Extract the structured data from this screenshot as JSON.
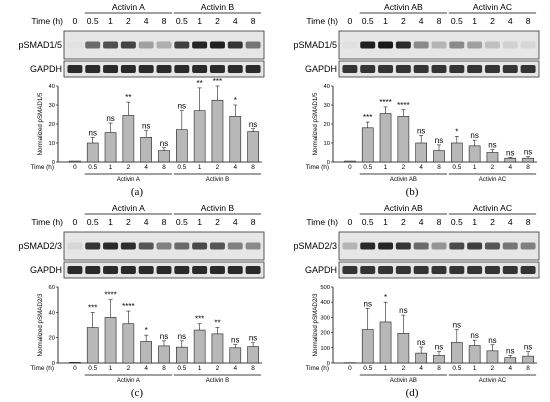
{
  "panels": [
    {
      "id": "a",
      "label": "(a)",
      "time_label": "Time (h)",
      "groups": [
        {
          "name": "Activin A",
          "times": [
            "0.5",
            "1",
            "2",
            "4",
            "8"
          ]
        },
        {
          "name": "Activin B",
          "times": [
            "0.5",
            "1",
            "2",
            "4",
            "8"
          ]
        }
      ],
      "control_time": "0",
      "blots": [
        {
          "label": "pSMAD1/5",
          "intensities": [
            0.04,
            0.6,
            0.72,
            0.78,
            0.35,
            0.28,
            0.8,
            0.92,
            0.95,
            0.85,
            0.55
          ]
        },
        {
          "label": "GAPDH",
          "intensities": [
            0.9,
            0.9,
            0.9,
            0.9,
            0.9,
            0.9,
            0.9,
            0.9,
            0.9,
            0.9,
            0.9
          ]
        }
      ],
      "chart_data": {
        "type": "bar",
        "ylabel": "Normalized pSMAD1/5",
        "ylim": [
          0,
          40
        ],
        "yticks": [
          "0",
          "10",
          "20",
          "30",
          "40"
        ],
        "xlabel": "Time (h)",
        "categories": [
          "0",
          "0.5",
          "1",
          "2",
          "4",
          "8",
          "0.5",
          "1",
          "2",
          "4",
          "8"
        ],
        "group_labels": [
          "Activin A",
          "Activin B"
        ],
        "values": [
          0.5,
          10,
          15.5,
          24.5,
          13,
          6,
          17,
          27,
          32.5,
          24,
          16
        ],
        "errors": [
          0,
          3,
          5,
          7,
          3.5,
          1.5,
          10,
          12,
          12,
          6,
          1.5
        ],
        "significance": [
          "",
          "ns",
          "ns",
          "**",
          "ns",
          "ns",
          "ns",
          "**",
          "***",
          "*",
          "ns"
        ]
      }
    },
    {
      "id": "b",
      "label": "(b)",
      "time_label": "Time (h)",
      "groups": [
        {
          "name": "Activin AB",
          "times": [
            "0.5",
            "1",
            "2",
            "4",
            "8"
          ]
        },
        {
          "name": "Activin AC",
          "times": [
            "0.5",
            "1",
            "2",
            "4",
            "8"
          ]
        }
      ],
      "control_time": "0",
      "blots": [
        {
          "label": "pSMAD1/5",
          "intensities": [
            0.05,
            0.95,
            0.98,
            0.9,
            0.45,
            0.25,
            0.45,
            0.35,
            0.2,
            0.12,
            0.1
          ]
        },
        {
          "label": "GAPDH",
          "intensities": [
            0.85,
            0.85,
            0.85,
            0.85,
            0.85,
            0.85,
            0.85,
            0.85,
            0.85,
            0.85,
            0.85
          ]
        }
      ],
      "chart_data": {
        "type": "bar",
        "ylabel": "Normalized pSMAD1/5",
        "ylim": [
          0,
          40
        ],
        "yticks": [
          "0",
          "10",
          "20",
          "30",
          "40"
        ],
        "xlabel": "Time (h)",
        "categories": [
          "0",
          "0.5",
          "1",
          "2",
          "4",
          "8",
          "0.5",
          "1",
          "2",
          "4",
          "8"
        ],
        "group_labels": [
          "Activin AB",
          "Activin AC"
        ],
        "values": [
          0.5,
          18,
          25.5,
          24,
          10,
          6,
          10,
          8.5,
          5,
          2,
          2
        ],
        "errors": [
          0,
          3,
          3.5,
          3.5,
          4,
          3,
          3.5,
          3,
          1.5,
          0.5,
          0.8
        ],
        "significance": [
          "",
          "***",
          "****",
          "****",
          "ns",
          "ns",
          "*",
          "ns",
          "ns",
          "ns",
          "ns"
        ]
      }
    },
    {
      "id": "c",
      "label": "(c)",
      "time_label": "Time (h)",
      "groups": [
        {
          "name": "Activin A",
          "times": [
            "0.5",
            "1",
            "2",
            "4",
            "8"
          ]
        },
        {
          "name": "Activin B",
          "times": [
            "0.5",
            "1",
            "2",
            "4",
            "8"
          ]
        }
      ],
      "control_time": "0",
      "blots": [
        {
          "label": "pSMAD2/3",
          "intensities": [
            0.1,
            0.85,
            0.9,
            0.88,
            0.7,
            0.5,
            0.6,
            0.75,
            0.7,
            0.5,
            0.45
          ]
        },
        {
          "label": "GAPDH",
          "intensities": [
            0.9,
            0.9,
            0.9,
            0.9,
            0.9,
            0.9,
            0.9,
            0.9,
            0.9,
            0.9,
            0.9
          ]
        }
      ],
      "chart_data": {
        "type": "bar",
        "ylabel": "Normalized pSMAD2/3",
        "ylim": [
          0,
          60
        ],
        "yticks": [
          "0",
          "20",
          "40",
          "60"
        ],
        "xlabel": "Time (h)",
        "categories": [
          "0",
          "0.5",
          "1",
          "2",
          "4",
          "8",
          "0.5",
          "1",
          "2",
          "4",
          "8"
        ],
        "group_labels": [
          "Activin A",
          "Activin B"
        ],
        "values": [
          0.5,
          28,
          36,
          31,
          17,
          13.5,
          12.5,
          26,
          23,
          12,
          13
        ],
        "errors": [
          0,
          12,
          14,
          10,
          5,
          4,
          5,
          5,
          5,
          2.5,
          3
        ],
        "significance": [
          "",
          "***",
          "****",
          "****",
          "*",
          "ns",
          "ns",
          "***",
          "**",
          "ns",
          "ns"
        ]
      }
    },
    {
      "id": "d",
      "label": "(d)",
      "time_label": "Time (h)",
      "groups": [
        {
          "name": "Activin AB",
          "times": [
            "0.5",
            "1",
            "2",
            "4",
            "8"
          ]
        },
        {
          "name": "Activin AC",
          "times": [
            "0.5",
            "1",
            "2",
            "4",
            "8"
          ]
        }
      ],
      "control_time": "0",
      "blots": [
        {
          "label": "pSMAD2/3",
          "intensities": [
            0.25,
            0.9,
            0.92,
            0.85,
            0.6,
            0.4,
            0.75,
            0.8,
            0.7,
            0.55,
            0.5
          ]
        },
        {
          "label": "GAPDH",
          "intensities": [
            0.85,
            0.85,
            0.85,
            0.85,
            0.85,
            0.85,
            0.85,
            0.85,
            0.85,
            0.85,
            0.85
          ]
        }
      ],
      "chart_data": {
        "type": "bar",
        "ylabel": "Normalized pSMAD2/3",
        "ylim": [
          0,
          500
        ],
        "yticks": [
          "0",
          "100",
          "200",
          "300",
          "400",
          "500"
        ],
        "xlabel": "Time (h)",
        "categories": [
          "0",
          "0.5",
          "1",
          "2",
          "4",
          "8",
          "0.5",
          "1",
          "2",
          "4",
          "8"
        ],
        "group_labels": [
          "Activin AB",
          "Activin AC"
        ],
        "values": [
          2,
          220,
          270,
          195,
          65,
          50,
          135,
          115,
          80,
          35,
          45
        ],
        "errors": [
          0,
          140,
          130,
          120,
          40,
          25,
          85,
          35,
          40,
          15,
          30
        ],
        "significance": [
          "",
          "ns",
          "*",
          "ns",
          "ns",
          "ns",
          "ns",
          "ns",
          "ns",
          "ns",
          "ns"
        ]
      }
    }
  ]
}
